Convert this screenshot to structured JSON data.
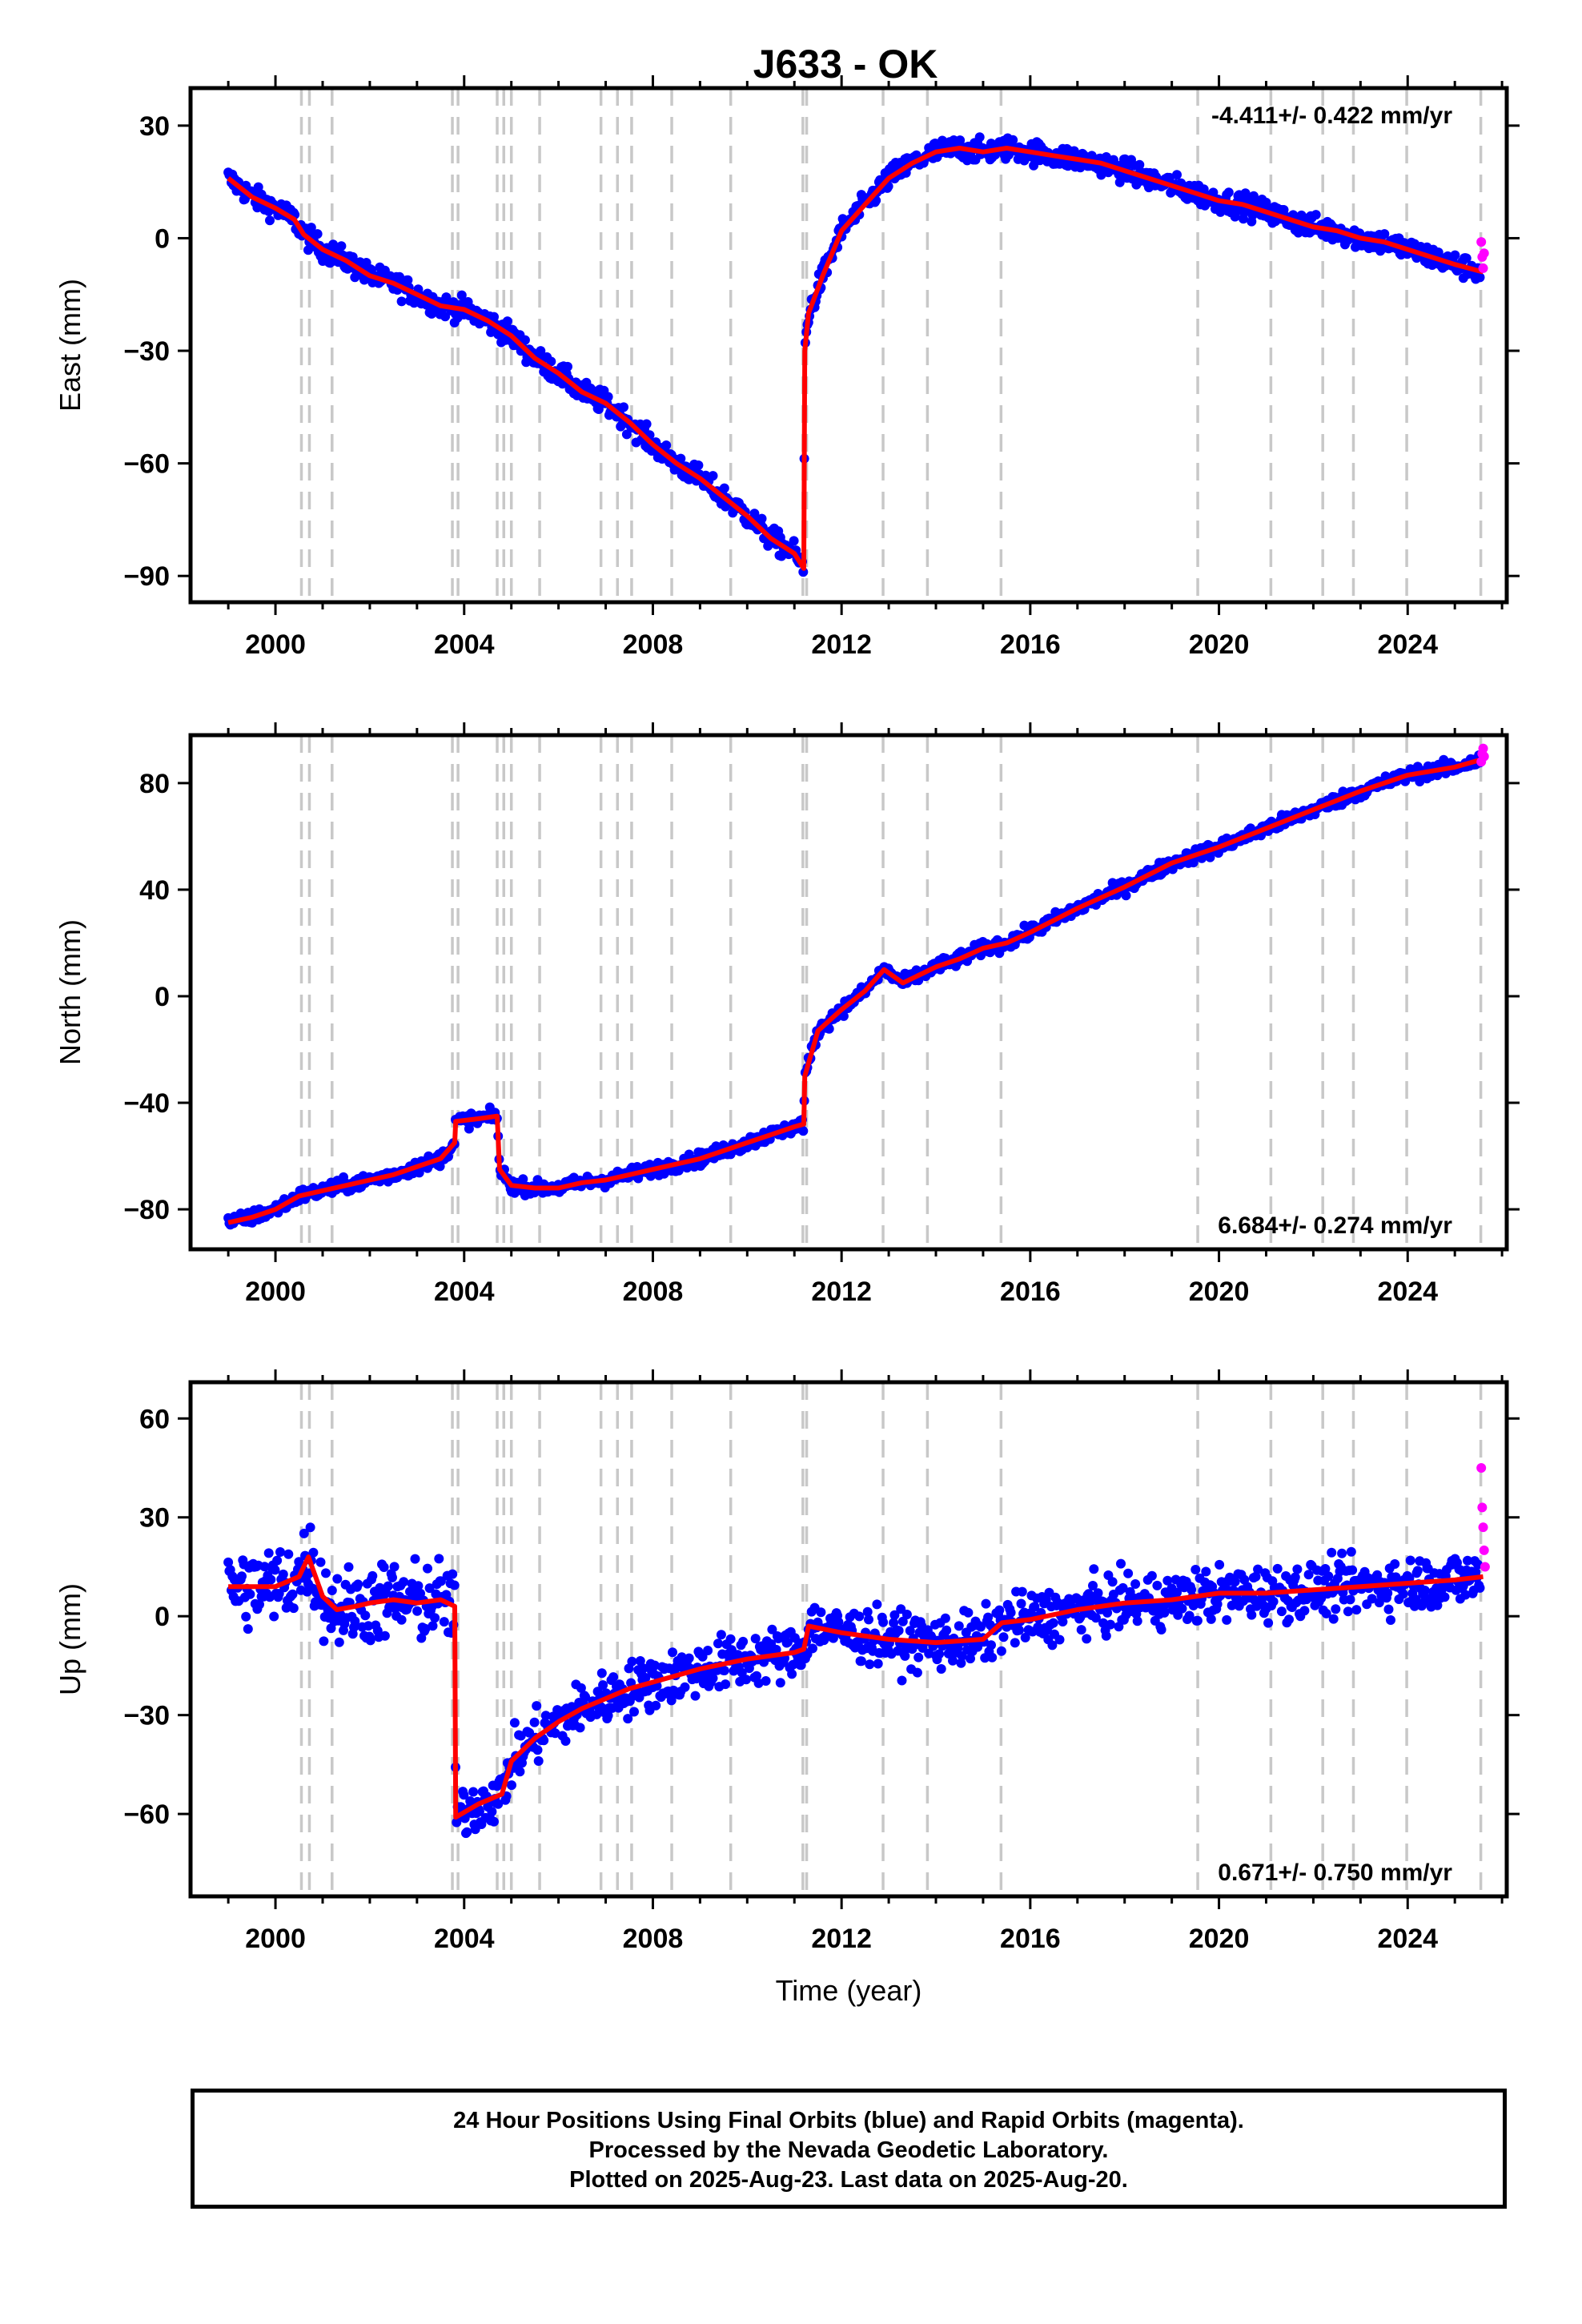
{
  "title": "J633 - OK",
  "footer": {
    "line1": "24 Hour Positions Using Final Orbits (blue) and Rapid Orbits (magenta).",
    "line2": "Processed by the Nevada Geodetic Laboratory.",
    "line3": "Plotted on 2025-Aug-23. Last data on 2025-Aug-20."
  },
  "colors": {
    "final_orbits": "#0000ff",
    "rapid_orbits": "#ff00ff",
    "model": "#ff0000",
    "event_lines": "#c8c8c8"
  },
  "chart_data": [
    {
      "type": "scatter",
      "panel": "East",
      "title": "J633 - OK",
      "xlabel": "",
      "ylabel": "East (mm)",
      "xlim": [
        1998.2,
        2026.1
      ],
      "ylim": [
        -97,
        40
      ],
      "xticks": [
        2000,
        2004,
        2008,
        2012,
        2016,
        2020,
        2024
      ],
      "yticks": [
        -90,
        -60,
        -30,
        0,
        30
      ],
      "grid": false,
      "annotation": "-4.411+/- 0.422 mm/yr",
      "annotation_position": "top-right",
      "event_lines": [
        2000.55,
        2000.72,
        2001.2,
        2003.75,
        2003.87,
        2004.7,
        2004.84,
        2005.0,
        2005.6,
        2006.9,
        2007.25,
        2007.55,
        2008.4,
        2009.65,
        2011.18,
        2011.26,
        2012.88,
        2013.82,
        2015.38,
        2019.55,
        2021.1,
        2022.2,
        2022.85,
        2023.98,
        2025.55
      ],
      "series": [
        {
          "role": "model",
          "x": [
            1999.0,
            1999.5,
            2000.0,
            2000.4,
            2000.6,
            2001.0,
            2001.5,
            2002.0,
            2002.5,
            2003.0,
            2003.5,
            2004.0,
            2004.5,
            2005.0,
            2005.5,
            2006.0,
            2006.5,
            2007.0,
            2007.5,
            2008.0,
            2008.5,
            2009.0,
            2009.5,
            2010.0,
            2010.5,
            2011.0,
            2011.2,
            2011.22,
            2011.3,
            2011.6,
            2012.0,
            2012.5,
            2013.0,
            2013.5,
            2014.0,
            2014.5,
            2015.0,
            2015.5,
            2016.0,
            2016.5,
            2017.0,
            2017.5,
            2018.0,
            2018.5,
            2019.0,
            2019.5,
            2020.0,
            2020.5,
            2021.0,
            2021.5,
            2022.0,
            2022.5,
            2023.0,
            2023.5,
            2024.0,
            2024.5,
            2025.0,
            2025.6
          ],
          "values": [
            16,
            11,
            8,
            5,
            1,
            -3,
            -6,
            -10,
            -12,
            -15,
            -18,
            -19,
            -22,
            -26,
            -32,
            -36,
            -41,
            -44,
            -49,
            -55,
            -60,
            -64,
            -69,
            -74,
            -80,
            -84,
            -88,
            -30,
            -20,
            -10,
            2,
            9,
            16,
            20,
            23,
            24,
            23,
            24,
            23,
            22,
            21,
            20,
            18,
            16,
            14,
            12,
            10,
            9,
            7,
            5,
            3,
            2,
            0,
            -1,
            -3,
            -5,
            -7,
            -9
          ]
        },
        {
          "role": "rapid_orbits",
          "x": [
            2025.56,
            2025.58,
            2025.6,
            2025.62
          ],
          "values": [
            -1,
            -5,
            -8,
            -4
          ]
        }
      ]
    },
    {
      "type": "scatter",
      "panel": "North",
      "title": "",
      "xlabel": "",
      "ylabel": "North (mm)",
      "xlim": [
        1998.2,
        2026.1
      ],
      "ylim": [
        -95,
        98
      ],
      "xticks": [
        2000,
        2004,
        2008,
        2012,
        2016,
        2020,
        2024
      ],
      "yticks": [
        -80,
        -40,
        0,
        40,
        80
      ],
      "grid": false,
      "annotation": "6.684+/- 0.274 mm/yr",
      "annotation_position": "bottom-right",
      "event_lines": [
        2000.55,
        2000.72,
        2001.2,
        2003.75,
        2003.87,
        2004.7,
        2004.84,
        2005.0,
        2005.6,
        2006.9,
        2007.25,
        2007.55,
        2008.4,
        2009.65,
        2011.18,
        2011.26,
        2012.88,
        2013.82,
        2015.38,
        2019.55,
        2021.1,
        2022.2,
        2022.85,
        2023.98,
        2025.55
      ],
      "series": [
        {
          "role": "model",
          "x": [
            1999.0,
            1999.5,
            2000.0,
            2000.5,
            2001.0,
            2001.5,
            2002.0,
            2002.5,
            2003.0,
            2003.5,
            2003.8,
            2003.82,
            2004.3,
            2004.7,
            2004.75,
            2005.0,
            2005.5,
            2006.0,
            2006.5,
            2007.0,
            2007.5,
            2008.0,
            2008.5,
            2009.0,
            2009.5,
            2010.0,
            2010.5,
            2011.0,
            2011.2,
            2011.22,
            2011.5,
            2012.0,
            2012.5,
            2012.9,
            2013.3,
            2014.0,
            2014.5,
            2015.0,
            2015.5,
            2016.0,
            2017.0,
            2018.0,
            2019.0,
            2020.0,
            2021.0,
            2022.0,
            2023.0,
            2024.0,
            2025.0,
            2025.6
          ],
          "values": [
            -85,
            -83,
            -80,
            -75,
            -73,
            -71,
            -69,
            -67,
            -64,
            -61,
            -55,
            -47,
            -46,
            -45,
            -65,
            -71,
            -72,
            -72,
            -70,
            -69,
            -67,
            -65,
            -63,
            -61,
            -58,
            -55,
            -52,
            -49,
            -48,
            -30,
            -13,
            -5,
            2,
            10,
            5,
            11,
            14,
            18,
            20,
            24,
            33,
            41,
            50,
            56,
            63,
            70,
            77,
            83,
            86,
            89
          ]
        },
        {
          "role": "rapid_orbits",
          "x": [
            2025.56,
            2025.58,
            2025.6,
            2025.62
          ],
          "values": [
            88,
            91,
            93,
            90
          ]
        }
      ]
    },
    {
      "type": "scatter",
      "panel": "Up",
      "title": "",
      "xlabel": "Time (year)",
      "ylabel": "Up (mm)",
      "xlim": [
        1998.2,
        2026.1
      ],
      "ylim": [
        -85,
        71
      ],
      "xticks": [
        2000,
        2004,
        2008,
        2012,
        2016,
        2020,
        2024
      ],
      "yticks": [
        -60,
        -30,
        0,
        30,
        60
      ],
      "grid": false,
      "annotation": "0.671+/- 0.750 mm/yr",
      "annotation_position": "bottom-right",
      "event_lines": [
        2000.55,
        2000.72,
        2001.2,
        2003.75,
        2003.87,
        2004.7,
        2004.84,
        2005.0,
        2005.6,
        2006.9,
        2007.25,
        2007.55,
        2008.4,
        2009.65,
        2011.18,
        2011.26,
        2012.88,
        2013.82,
        2015.38,
        2019.55,
        2021.1,
        2022.2,
        2022.85,
        2023.98,
        2025.55
      ],
      "series": [
        {
          "role": "model",
          "x": [
            1999.0,
            1999.5,
            2000.0,
            2000.5,
            2000.7,
            2001.0,
            2001.3,
            2001.7,
            2002.0,
            2002.5,
            2003.0,
            2003.5,
            2003.8,
            2003.82,
            2004.3,
            2004.8,
            2005.0,
            2005.5,
            2006.0,
            2006.5,
            2007.0,
            2007.5,
            2008.0,
            2009.0,
            2010.0,
            2011.0,
            2011.2,
            2011.3,
            2012.0,
            2013.0,
            2014.0,
            2015.0,
            2015.4,
            2016.0,
            2017.0,
            2018.0,
            2019.0,
            2020.0,
            2021.0,
            2022.0,
            2023.0,
            2024.0,
            2025.0,
            2025.6
          ],
          "values": [
            9,
            9,
            9,
            12,
            18,
            6,
            2,
            3,
            4,
            5,
            4,
            5,
            3,
            -61,
            -57,
            -54,
            -44,
            -37,
            -32,
            -28,
            -25,
            -22,
            -20,
            -16,
            -13,
            -11,
            -10,
            -3,
            -5,
            -7,
            -8,
            -7,
            -2,
            -1,
            2,
            4,
            5,
            7,
            7,
            8,
            9,
            10,
            11,
            12
          ]
        },
        {
          "role": "rapid_orbits",
          "x": [
            2025.56,
            2025.58,
            2025.6,
            2025.62,
            2025.64
          ],
          "values": [
            45,
            33,
            27,
            20,
            15
          ]
        }
      ]
    }
  ]
}
